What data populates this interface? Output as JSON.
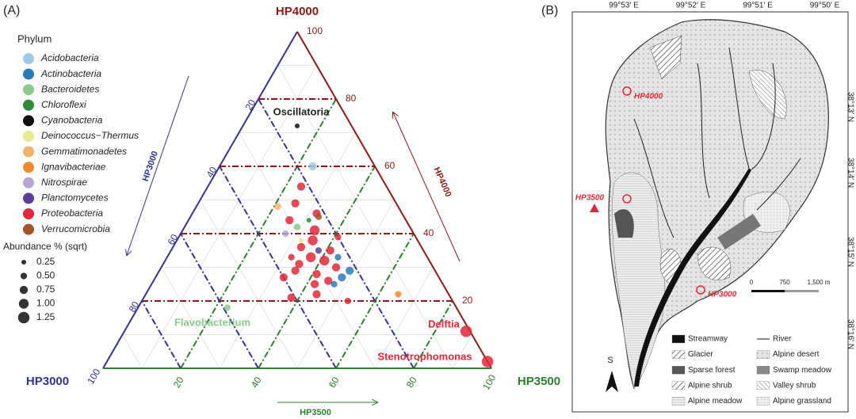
{
  "chart_data": {
    "type": "ternary",
    "panel_label": "(A)",
    "vertex_labels": [
      "HP4000",
      "HP3000",
      "HP3500"
    ],
    "arrow_labels": [
      "HP3000",
      "HP4000",
      "HP3500"
    ],
    "ticks": [
      20,
      40,
      60,
      80,
      100
    ],
    "legend_title": "Phylum",
    "size_title": "Abundance % (sqrt)",
    "size_legend": [
      {
        "value": 0.25,
        "label": "0.25"
      },
      {
        "value": 0.5,
        "label": "0.50"
      },
      {
        "value": 0.75,
        "label": "0.75"
      },
      {
        "value": 1,
        "label": "1.00"
      },
      {
        "value": 1.25,
        "label": "1.25"
      }
    ],
    "series": [
      {
        "name": "Acidobacteria",
        "color": "#9ecae1",
        "hp4000": [
          60
        ],
        "hp3000": [
          16
        ],
        "hp3500": [
          24
        ],
        "abundance": [
          0.75
        ]
      },
      {
        "name": "Actinobacteria",
        "color": "#2b7bba",
        "hp4000": [
          29,
          27,
          25,
          33
        ],
        "hp3000": [
          22,
          25,
          28,
          23
        ],
        "hp3500": [
          49,
          48,
          47,
          44
        ],
        "abundance": [
          0.75,
          0.75,
          0.5,
          0.5
        ]
      },
      {
        "name": "Bacteroidetes",
        "color": "#8cc98c",
        "hp4000": [
          18,
          42
        ],
        "hp3000": [
          59,
          29
        ],
        "hp3500": [
          23,
          29
        ],
        "abundance": [
          0.5,
          0.5
        ]
      },
      {
        "name": "Chloroflexi",
        "color": "#2e8b3a",
        "hp4000": [
          44
        ],
        "hp3000": [
          25
        ],
        "hp3500": [
          31
        ],
        "abundance": [
          0.25
        ]
      },
      {
        "name": "Cyanobacteria",
        "color": "#111111",
        "hp4000": [
          72
        ],
        "hp3000": [
          14
        ],
        "hp3500": [
          14
        ],
        "abundance": [
          0.25
        ]
      },
      {
        "name": "Deinococcus−Thermus",
        "color": "#e6eb8f",
        "hp4000": [
          38
        ],
        "hp3000": [
          30
        ],
        "hp3500": [
          32
        ],
        "abundance": [
          0.25
        ]
      },
      {
        "name": "Gemmatimonadetes",
        "color": "#f2b36b",
        "hp4000": [
          48
        ],
        "hp3000": [
          31
        ],
        "hp3500": [
          21
        ],
        "abundance": [
          0.5
        ]
      },
      {
        "name": "Ignavibacteriae",
        "color": "#f08a30",
        "hp4000": [
          22
        ],
        "hp3000": [
          13
        ],
        "hp3500": [
          65
        ],
        "abundance": [
          0.5
        ]
      },
      {
        "name": "Nitrospirae",
        "color": "#b9a7d3",
        "hp4000": [
          40
        ],
        "hp3000": [
          33
        ],
        "hp3500": [
          27
        ],
        "abundance": [
          0.5
        ]
      },
      {
        "name": "Planctomycetes",
        "color": "#5b3e96",
        "hp4000": [
          35
        ],
        "hp3000": [
          27
        ],
        "hp3500": [
          38
        ],
        "abundance": [
          0.5
        ]
      },
      {
        "name": "Proteobacteria",
        "color": "#e0283a",
        "hp4000": [
          54,
          49,
          46,
          41,
          38,
          36,
          33,
          31,
          29,
          27,
          35,
          32,
          28,
          25,
          39,
          30,
          26,
          22,
          11,
          2,
          21,
          33,
          44,
          20
        ],
        "hp3000": [
          22,
          26,
          22,
          25,
          27,
          31,
          30,
          34,
          36,
          40,
          24,
          27,
          31,
          33,
          20,
          25,
          29,
          34,
          1,
          0,
          41,
          35,
          30,
          27
        ],
        "hp3500": [
          24,
          25,
          32,
          34,
          35,
          33,
          37,
          35,
          35,
          33,
          41,
          41,
          41,
          42,
          41,
          45,
          45,
          44,
          88,
          98,
          38,
          32,
          26,
          53
        ],
        "abundance": [
          0.75,
          0.75,
          0.75,
          1,
          1,
          0.75,
          1,
          0.75,
          0.75,
          0.75,
          0.75,
          1,
          0.75,
          0.75,
          0.5,
          0.75,
          0.75,
          0.75,
          1.25,
          1.25,
          0.75,
          0.5,
          0.75,
          0.5
        ]
      },
      {
        "name": "Verrucomicrobia",
        "color": "#a5532a",
        "hp4000": [
          45
        ],
        "hp3000": [
          22
        ],
        "hp3500": [
          33
        ],
        "abundance": [
          0.5
        ]
      }
    ],
    "annotations": [
      {
        "text": "Oscillatoria",
        "color": "#222222"
      },
      {
        "text": "Flavobacterium",
        "color": "#8cc98c"
      },
      {
        "text": "Delftia",
        "color": "#e0283a"
      },
      {
        "text": "Stenotrophomonas",
        "color": "#e0283a"
      }
    ]
  },
  "map": {
    "panel_label": "(B)",
    "lon_labels": [
      "99°53′ E",
      "99°52′ E",
      "99°51′ E",
      "99°50′ E"
    ],
    "lat_labels": [
      "38°13′ N",
      "38°14′ N",
      "38°15′ N",
      "38°16′ N"
    ],
    "sites": [
      "HP4000",
      "HP3500",
      "HP3000"
    ],
    "scale_labels": [
      "0",
      "750",
      "1,500 m"
    ],
    "north": "S",
    "legend": [
      "Streamway",
      "Glacier",
      "Sparse forest",
      "Alpine shrub",
      "Alpine meadow",
      "River",
      "Alpine desert",
      "Swamp meadow",
      "Valley shrub",
      "Alpine grassland"
    ]
  }
}
